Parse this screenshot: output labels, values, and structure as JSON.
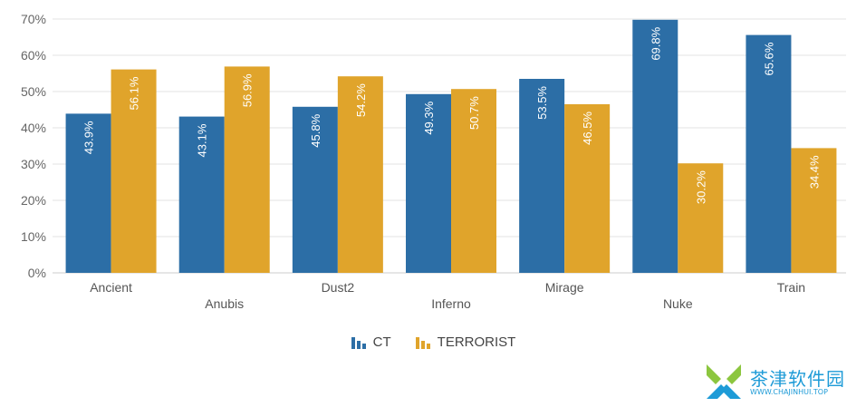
{
  "chart_data": {
    "type": "bar",
    "categories": [
      "Ancient",
      "Anubis",
      "Dust2",
      "Inferno",
      "Mirage",
      "Nuke",
      "Train"
    ],
    "series": [
      {
        "name": "CT",
        "color": "#2c6ea6",
        "values": [
          43.9,
          43.1,
          45.8,
          49.3,
          53.5,
          69.8,
          65.6
        ],
        "labels": [
          "43.9%",
          "43.1%",
          "45.8%",
          "49.3%",
          "53.5%",
          "69.8%",
          "65.6%"
        ]
      },
      {
        "name": "TERRORIST",
        "color": "#e0a42b",
        "values": [
          56.1,
          56.9,
          54.2,
          50.7,
          46.5,
          30.2,
          34.4
        ],
        "labels": [
          "56.1%",
          "56.9%",
          "54.2%",
          "50.7%",
          "46.5%",
          "30.2%",
          "34.4%"
        ]
      }
    ],
    "yaxis": {
      "ylim": [
        0,
        70
      ],
      "ticks": [
        0,
        10,
        20,
        30,
        40,
        50,
        60,
        70
      ],
      "tick_labels": [
        "0%",
        "10%",
        "20%",
        "30%",
        "40%",
        "50%",
        "60%",
        "70%"
      ]
    },
    "grid": true,
    "legend_placement": "bottom-center"
  },
  "legend": {
    "items": [
      {
        "label": "CT",
        "color": "#2c6ea6",
        "icon": "bar-chart-icon"
      },
      {
        "label": "TERRORIST",
        "color": "#e0a42b",
        "icon": "bar-chart-icon"
      }
    ]
  },
  "watermark": {
    "text": "茶津软件园",
    "url": "WWW.CHAJINHUI.TOP"
  }
}
